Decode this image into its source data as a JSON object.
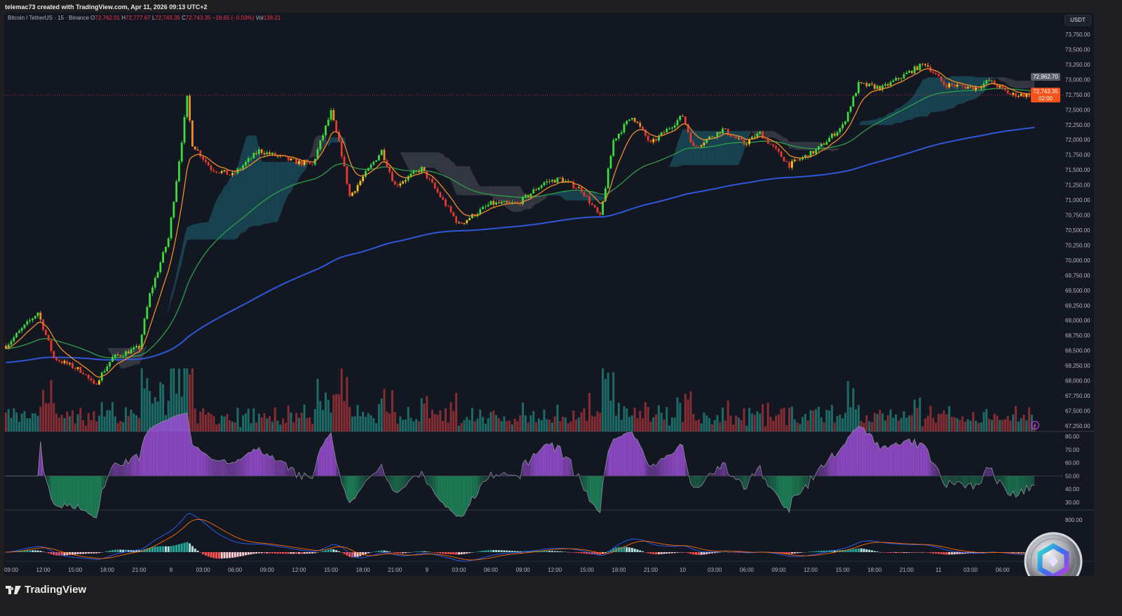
{
  "header": {
    "credit": "telemac73 created with TradingView.com, Apr 11, 2026 09:13 UTC+2"
  },
  "legend": {
    "symbol": "Bitcoin / TetherUS · 15 · Binance",
    "o_label": "O",
    "o": "72,762.01",
    "h_label": "H",
    "h": "72,777.67",
    "l_label": "L",
    "l": "72,743.35",
    "c_label": "C",
    "c": "72,743.35",
    "change": "−18.65 (−0.03%)",
    "vol_label": "Vol",
    "vol": "138.21"
  },
  "price_axis": {
    "currency": "USDT",
    "marker_price": "72,962.70",
    "last_price": "72,743.35",
    "countdown": "02:00"
  },
  "footer": {
    "brand": "TradingView"
  },
  "colors": {
    "background": "#131722",
    "up": "#3ddc3d",
    "down": "#e8392f",
    "up_weak": "#f5c518",
    "down_weak": "#f08c28",
    "ema_fast": "#f08c28",
    "ema_mid": "#2e9e48",
    "ema_slow": "#2f58d8",
    "cloud_bull": "#1b4a58",
    "cloud_bear": "#3a3d48",
    "rsi_above": "#9c4fd6",
    "rsi_below": "#1e8a5a",
    "last_price": "#f7521a"
  },
  "icons": {
    "alert": "lightning-icon",
    "logo": "tradingview-logo",
    "watermark": "crypto-coin-logo"
  },
  "chart_data": {
    "type": "candlestick",
    "interval": "15",
    "symbol": "BTCUSDT",
    "close_approx": [
      [
        "2026-04-07 08:30",
        68578
      ],
      [
        "2026-04-07 11:30",
        69136
      ],
      [
        "2026-04-07 13:00",
        68380
      ],
      [
        "2026-04-07 15:45",
        68146
      ],
      [
        "2026-04-07 16:45",
        67913
      ],
      [
        "2026-04-07 18:30",
        68380
      ],
      [
        "2026-04-07 21:00",
        68555
      ],
      [
        "2026-04-07 22:00",
        69430
      ],
      [
        "2026-04-07 23:45",
        70360
      ],
      [
        "2026-04-08 01:00",
        71990
      ],
      [
        "2026-04-08 01:30",
        72690
      ],
      [
        "2026-04-08 02:00",
        71930
      ],
      [
        "2026-04-08 03:45",
        71520
      ],
      [
        "2026-04-08 05:45",
        71410
      ],
      [
        "2026-04-08 08:15",
        71820
      ],
      [
        "2026-04-08 11:30",
        71640
      ],
      [
        "2026-04-08 13:15",
        71580
      ],
      [
        "2026-04-08 15:00",
        72460
      ],
      [
        "2026-04-08 16:00",
        71760
      ],
      [
        "2026-04-08 16:45",
        71060
      ],
      [
        "2026-04-08 19:45",
        71820
      ],
      [
        "2026-04-08 21:00",
        71240
      ],
      [
        "2026-04-08 23:30",
        71520
      ],
      [
        "2026-04-09 03:00",
        70590
      ],
      [
        "2026-04-09 06:00",
        70940
      ],
      [
        "2026-04-09 08:30",
        70940
      ],
      [
        "2026-04-09 11:00",
        71290
      ],
      [
        "2026-04-09 12:30",
        71350
      ],
      [
        "2026-04-09 14:30",
        71170
      ],
      [
        "2026-04-09 16:15",
        70710
      ],
      [
        "2026-04-09 17:30",
        71990
      ],
      [
        "2026-04-09 19:15",
        72400
      ],
      [
        "2026-04-09 21:00",
        71930
      ],
      [
        "2026-04-10 00:00",
        72400
      ],
      [
        "2026-04-10 01:00",
        71870
      ],
      [
        "2026-04-10 03:45",
        72170
      ],
      [
        "2026-04-10 05:45",
        71930
      ],
      [
        "2026-04-10 07:15",
        72110
      ],
      [
        "2026-04-10 10:00",
        71580
      ],
      [
        "2026-04-10 12:30",
        71820
      ],
      [
        "2026-04-10 15:00",
        72230
      ],
      [
        "2026-04-10 16:30",
        72920
      ],
      [
        "2026-04-10 18:45",
        72860
      ],
      [
        "2026-04-10 21:30",
        73150
      ],
      [
        "2026-04-10 22:45",
        73270
      ],
      [
        "2026-04-11 00:30",
        72920
      ],
      [
        "2026-04-11 03:30",
        72860
      ],
      [
        "2026-04-11 04:45",
        72980
      ],
      [
        "2026-04-11 06:45",
        72750
      ],
      [
        "2026-04-11 09:00",
        72743.35
      ]
    ],
    "y_ticks": [
      "73,750.00",
      "73,500.00",
      "73,250.00",
      "73,000.00",
      "72,750.00",
      "72,500.00",
      "72,250.00",
      "72,000.00",
      "71,750.00",
      "71,500.00",
      "71,250.00",
      "71,000.00",
      "70,750.00",
      "70,500.00",
      "70,250.00",
      "70,000.00",
      "69,750.00",
      "69,500.00",
      "69,250.00",
      "69,000.00",
      "68,750.00",
      "68,500.00",
      "68,250.00",
      "68,000.00",
      "67,750.00",
      "67,500.00",
      "67,250.00"
    ],
    "ylim": [
      67250,
      73750
    ],
    "x_ticks": [
      "09:00",
      "12:00",
      "15:00",
      "18:00",
      "21:00",
      "8",
      "03:00",
      "06:00",
      "09:00",
      "12:00",
      "15:00",
      "18:00",
      "21:00",
      "9",
      "03:00",
      "06:00",
      "09:00",
      "12:00",
      "15:00",
      "18:00",
      "21:00",
      "10",
      "03:00",
      "06:00",
      "09:00",
      "12:00",
      "15:00",
      "18:00",
      "21:00",
      "11",
      "03:00",
      "06:00"
    ],
    "overlays": [
      "EMA fast",
      "EMA mid",
      "EMA slow",
      "cloud",
      "volume"
    ],
    "rsi": {
      "ticks": [
        "80.00",
        "70.00",
        "60.00",
        "50.00",
        "40.00",
        "30.00"
      ],
      "ylim": [
        30,
        80
      ]
    },
    "macd": {
      "ticks": [
        "800.00"
      ]
    }
  }
}
